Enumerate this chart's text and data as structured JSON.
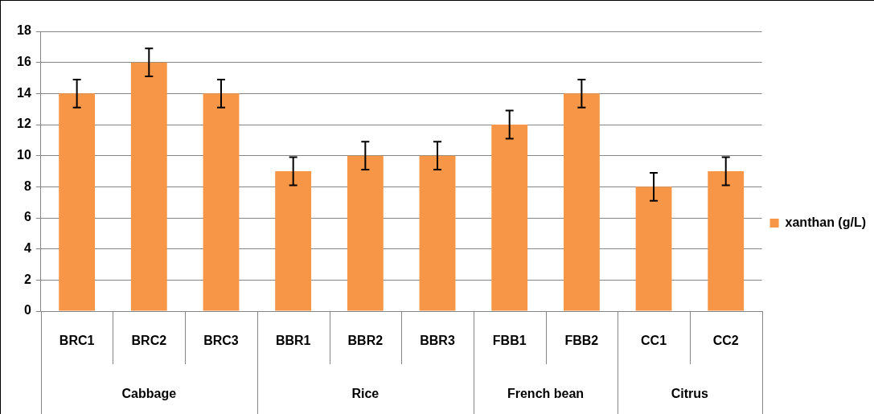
{
  "chart_data": {
    "type": "bar",
    "categories": [
      "BRC1",
      "BRC2",
      "BRC3",
      "BBR1",
      "BBR2",
      "BBR3",
      "FBB1",
      "FBB2",
      "CC1",
      "CC2"
    ],
    "series": [
      {
        "name": "xanthan (g/L)",
        "color": "#f79646",
        "values": [
          14,
          16,
          14,
          9,
          10,
          10,
          12,
          14,
          8,
          9
        ],
        "errors": [
          0.9,
          0.9,
          0.9,
          0.9,
          0.9,
          0.9,
          0.9,
          0.9,
          0.9,
          0.9
        ]
      }
    ],
    "ylim": [
      0,
      18
    ],
    "yticks": [
      0,
      2,
      4,
      6,
      8,
      10,
      12,
      14,
      16,
      18
    ],
    "grid": "y",
    "legend": "right",
    "annotations": [
      "Cabbage",
      "Rice",
      "French bean",
      "Citrus"
    ]
  }
}
